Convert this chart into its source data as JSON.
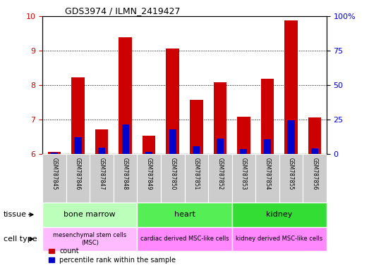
{
  "title": "GDS3974 / ILMN_2419427",
  "samples": [
    "GSM787845",
    "GSM787846",
    "GSM787847",
    "GSM787848",
    "GSM787849",
    "GSM787850",
    "GSM787851",
    "GSM787852",
    "GSM787853",
    "GSM787854",
    "GSM787855",
    "GSM787856"
  ],
  "red_values": [
    6.05,
    8.22,
    6.72,
    9.38,
    6.53,
    9.07,
    7.58,
    8.08,
    7.07,
    8.18,
    9.88,
    7.05
  ],
  "blue_values": [
    6.03,
    6.48,
    6.18,
    6.85,
    6.05,
    6.72,
    6.22,
    6.45,
    6.15,
    6.42,
    6.97,
    6.17
  ],
  "ymin": 6,
  "ymax": 10,
  "yticks_left": [
    6,
    7,
    8,
    9,
    10
  ],
  "yticks_right": [
    0,
    25,
    50,
    75,
    100
  ],
  "red_color": "#cc0000",
  "blue_color": "#0000cc",
  "bar_width": 0.55,
  "tissue_groups": [
    {
      "label": "bone marrow",
      "start": 0,
      "end": 4,
      "color": "#bbffbb"
    },
    {
      "label": "heart",
      "start": 4,
      "end": 8,
      "color": "#55ee55"
    },
    {
      "label": "kidney",
      "start": 8,
      "end": 12,
      "color": "#33dd33"
    }
  ],
  "cell_type_groups": [
    {
      "label": "mesenchymal stem cells\n(MSC)",
      "start": 0,
      "end": 4,
      "color": "#ffbbff"
    },
    {
      "label": "cardiac derived MSC-like cells",
      "start": 4,
      "end": 8,
      "color": "#ff88ff"
    },
    {
      "label": "kidney derived MSC-like cells",
      "start": 8,
      "end": 12,
      "color": "#ff88ff"
    }
  ],
  "sample_box_color": "#cccccc",
  "bg_color": "#ffffff",
  "tick_label_color_left": "#cc0000",
  "tick_label_color_right": "#0000cc",
  "legend_labels": [
    "count",
    "percentile rank within the sample"
  ],
  "tissue_label": "tissue",
  "cell_type_label": "cell type"
}
